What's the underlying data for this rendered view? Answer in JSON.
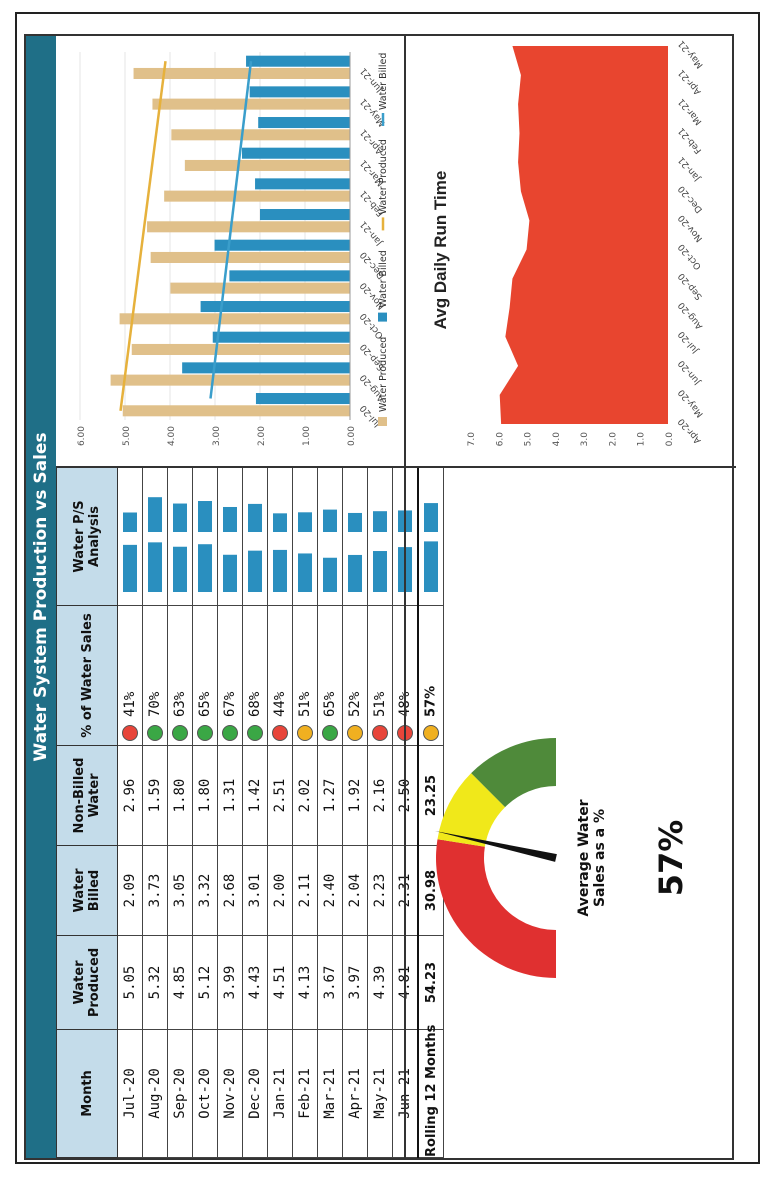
{
  "title": "Water System Production vs Sales",
  "table": {
    "headers": [
      "Month",
      "Water Produced",
      "Water Billed",
      "Non-Billed Water",
      "% of Water Sales",
      "Water P/S Analysis"
    ],
    "rows": [
      {
        "month": "Jul-20",
        "produced": "5.05",
        "billed": "2.09",
        "nonbilled": "2.96",
        "pct": "41%",
        "status": "red"
      },
      {
        "month": "Aug-20",
        "produced": "5.32",
        "billed": "3.73",
        "nonbilled": "1.59",
        "pct": "70%",
        "status": "green"
      },
      {
        "month": "Sep-20",
        "produced": "4.85",
        "billed": "3.05",
        "nonbilled": "1.80",
        "pct": "63%",
        "status": "green"
      },
      {
        "month": "Oct-20",
        "produced": "5.12",
        "billed": "3.32",
        "nonbilled": "1.80",
        "pct": "65%",
        "status": "green"
      },
      {
        "month": "Nov-20",
        "produced": "3.99",
        "billed": "2.68",
        "nonbilled": "1.31",
        "pct": "67%",
        "status": "green"
      },
      {
        "month": "Dec-20",
        "produced": "4.43",
        "billed": "3.01",
        "nonbilled": "1.42",
        "pct": "68%",
        "status": "green"
      },
      {
        "month": "Jan-21",
        "produced": "4.51",
        "billed": "2.00",
        "nonbilled": "2.51",
        "pct": "44%",
        "status": "red"
      },
      {
        "month": "Feb-21",
        "produced": "4.13",
        "billed": "2.11",
        "nonbilled": "2.02",
        "pct": "51%",
        "status": "yellow"
      },
      {
        "month": "Mar-21",
        "produced": "3.67",
        "billed": "2.40",
        "nonbilled": "1.27",
        "pct": "65%",
        "status": "green"
      },
      {
        "month": "Apr-21",
        "produced": "3.97",
        "billed": "2.04",
        "nonbilled": "1.92",
        "pct": "52%",
        "status": "yellow"
      },
      {
        "month": "May-21",
        "produced": "4.39",
        "billed": "2.23",
        "nonbilled": "2.16",
        "pct": "51%",
        "status": "red"
      },
      {
        "month": "Jun-21",
        "produced": "4.81",
        "billed": "2.31",
        "nonbilled": "2.50",
        "pct": "48%",
        "status": "red"
      }
    ],
    "total": {
      "month": "Rolling 12 Months",
      "produced": "54.23",
      "billed": "30.98",
      "nonbilled": "23.25",
      "pct": "57%",
      "status": "yellow"
    }
  },
  "gauge": {
    "label": "Average Water Sales as a %",
    "value_text": "57%",
    "value": 57,
    "bands": [
      {
        "color": "#e03030",
        "from": 0,
        "to": 55
      },
      {
        "color": "#f0e81a",
        "from": 55,
        "to": 75
      },
      {
        "color": "#4f8a3a",
        "from": 75,
        "to": 100
      }
    ]
  },
  "colors": {
    "produced": "#e0c08a",
    "billed": "#2a8fbf",
    "produced_trend": "#e6b13c",
    "billed_trend": "#3a9ecb",
    "area": "#e8452f",
    "status_red": "#e8453a",
    "status_green": "#3aa745",
    "status_yellow": "#f0b020"
  },
  "chart_data": [
    {
      "type": "bar",
      "title": "",
      "categories": [
        "Jul-20",
        "Aug-20",
        "Sep-20",
        "Oct-20",
        "Nov-20",
        "Dec-20",
        "Jan-21",
        "Feb-21",
        "Mar-21",
        "Apr-21",
        "May-21",
        "Jun-21"
      ],
      "series": [
        {
          "name": "Water Produced",
          "values": [
            5.05,
            5.32,
            4.85,
            5.12,
            3.99,
            4.43,
            4.51,
            4.13,
            3.67,
            3.97,
            4.39,
            4.81
          ]
        },
        {
          "name": "Water Billed",
          "values": [
            2.09,
            3.73,
            3.05,
            3.32,
            2.68,
            3.01,
            2.0,
            2.11,
            2.4,
            2.04,
            2.23,
            2.31
          ]
        }
      ],
      "trendlines": [
        {
          "name": "Water Produced",
          "from": 5.1,
          "to": 4.1
        },
        {
          "name": "Water Billed",
          "from": 3.1,
          "to": 2.2
        }
      ],
      "legend": [
        "Water Produced",
        "Water Billed",
        "Water Produced",
        "Water Billed"
      ],
      "ylim": [
        0,
        6
      ],
      "yticks": [
        "0.00",
        "1.00",
        "2.00",
        "3.00",
        "4.00",
        "5.00",
        "6.00"
      ],
      "legend_position": "bottom"
    },
    {
      "type": "area",
      "title": "Avg Daily Run Time",
      "x": [
        "Apr-20",
        "May-20",
        "Jun-20",
        "Jul-20",
        "Aug-20",
        "Sep-20",
        "Oct-20",
        "Nov-20",
        "Dec-20",
        "Jan-21",
        "Feb-21",
        "Mar-21",
        "Apr-21",
        "May-21"
      ],
      "values": [
        5.9,
        5.95,
        5.3,
        5.75,
        5.6,
        5.5,
        5.0,
        4.9,
        5.2,
        5.3,
        5.25,
        5.3,
        5.2,
        5.5
      ],
      "ylim": [
        0,
        7
      ],
      "yticks": [
        "0.0",
        "1.0",
        "2.0",
        "3.0",
        "4.0",
        "5.0",
        "6.0",
        "7.0"
      ]
    }
  ]
}
